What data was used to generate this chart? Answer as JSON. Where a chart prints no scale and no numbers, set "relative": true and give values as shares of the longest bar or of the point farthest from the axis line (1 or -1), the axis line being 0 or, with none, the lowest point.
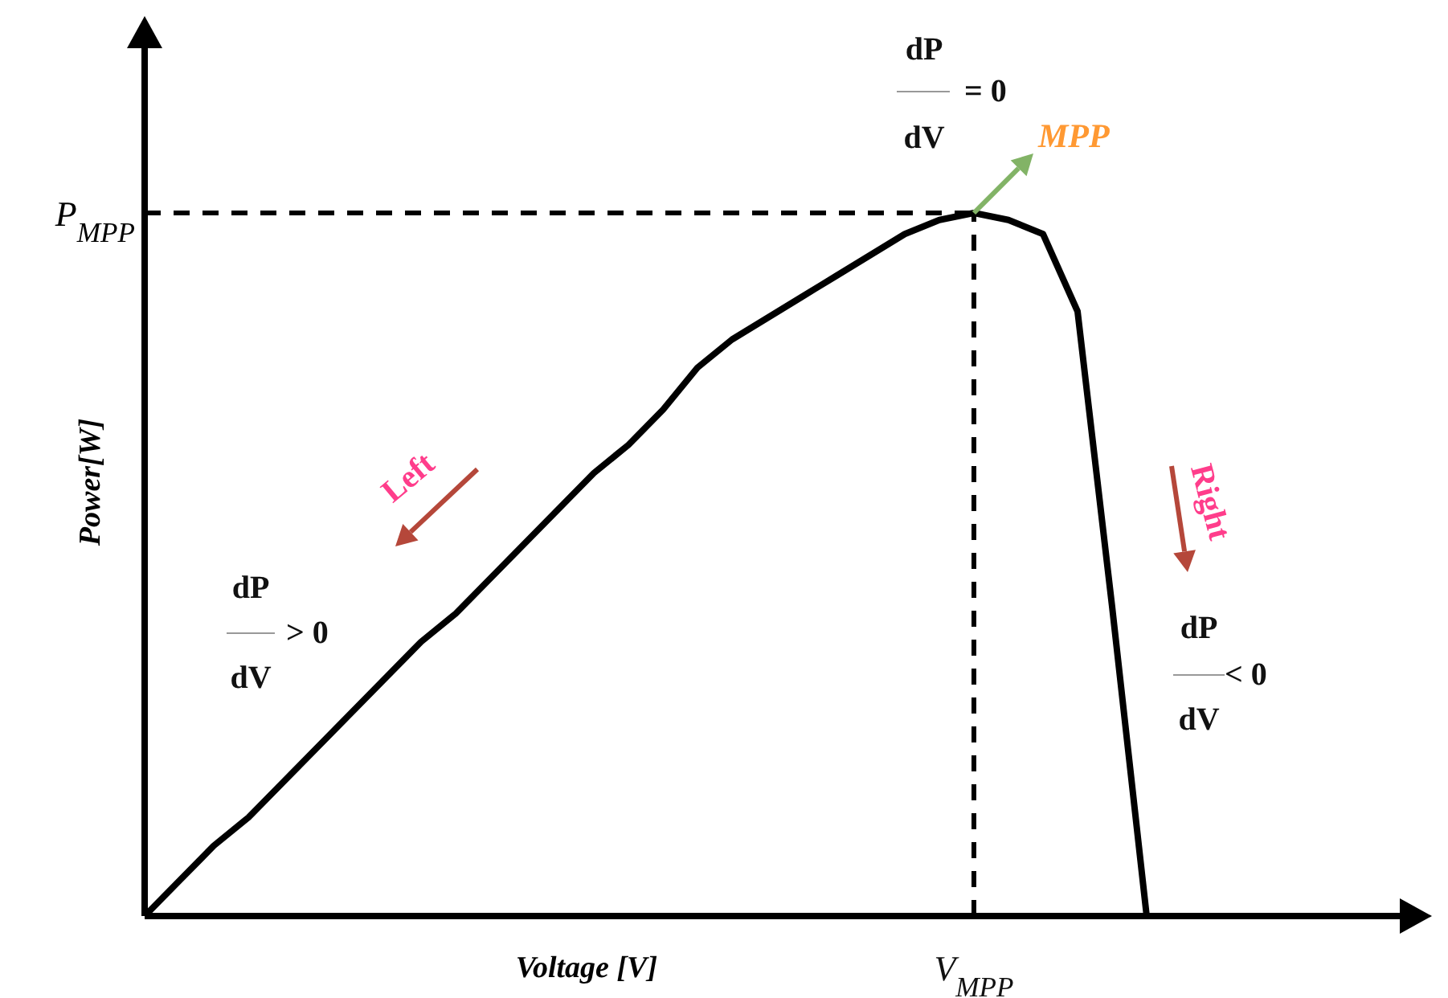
{
  "chart_data": {
    "type": "line",
    "relative": true,
    "xlabel": "Voltage [V]",
    "ylabel": "Power[W]",
    "marker": "none",
    "line_style": "solid",
    "categories": [
      null,
      null,
      null,
      null,
      null,
      null,
      null,
      null,
      null,
      null,
      null,
      null,
      null,
      null,
      null,
      null,
      null,
      null,
      null,
      null,
      null,
      null,
      null,
      null,
      null,
      null,
      null,
      null,
      null,
      null
    ],
    "series": [
      {
        "color": "#000000",
        "values": [
          0,
          0.05,
          0.1,
          0.14,
          0.19,
          0.24,
          0.29,
          0.34,
          0.39,
          0.43,
          0.48,
          0.53,
          0.58,
          0.63,
          0.67,
          0.72,
          0.78,
          0.82,
          0.85,
          0.88,
          0.91,
          0.94,
          0.97,
          0.99,
          1,
          0.99,
          0.97,
          0.86,
          0.44,
          0
        ]
      }
    ],
    "ref_lines": [
      {
        "axis": "y",
        "value": 1,
        "label": "P$_{MPP}$",
        "line_style": "dashed",
        "color": "#000000"
      }
    ],
    "annotations": [
      "MPP",
      "dP",
      "dV",
      "= 0",
      "Left",
      "dP",
      "dV",
      "> 0",
      "Right",
      "dP",
      "dV",
      "< 0",
      "V$_{MPP}$"
    ]
  }
}
